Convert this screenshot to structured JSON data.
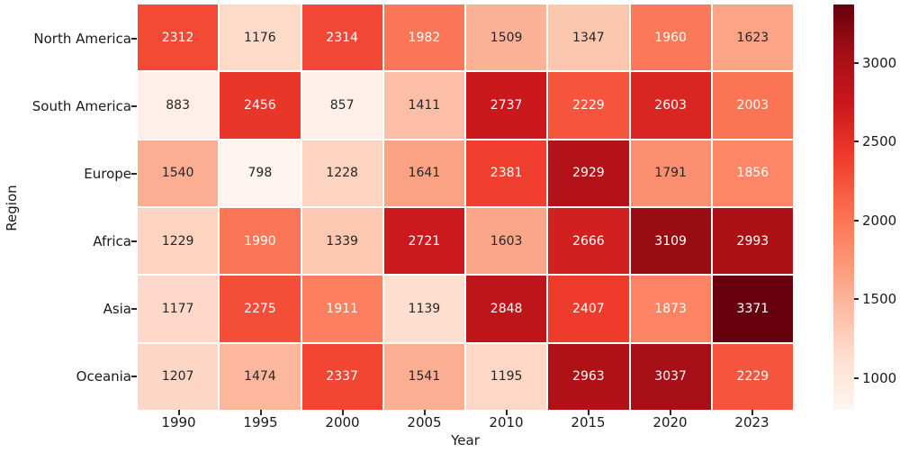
{
  "chart_data": {
    "type": "heatmap",
    "xlabel": "Year",
    "ylabel": "Region",
    "columns": [
      "1990",
      "1995",
      "2000",
      "2005",
      "2010",
      "2015",
      "2020",
      "2023"
    ],
    "rows": [
      "North America",
      "South America",
      "Europe",
      "Africa",
      "Asia",
      "Oceania"
    ],
    "values": [
      [
        2312,
        1176,
        2314,
        1982,
        1509,
        1347,
        1960,
        1623
      ],
      [
        883,
        2456,
        857,
        1411,
        2737,
        2229,
        2603,
        2003
      ],
      [
        1540,
        798,
        1228,
        1641,
        2381,
        2929,
        1791,
        1856
      ],
      [
        1229,
        1990,
        1339,
        2721,
        1603,
        2666,
        3109,
        2993
      ],
      [
        1177,
        2275,
        1911,
        1139,
        2848,
        2407,
        1873,
        3371
      ],
      [
        1207,
        1474,
        2337,
        1541,
        1195,
        2963,
        3037,
        2229
      ]
    ],
    "vmin": 798,
    "vmax": 3371,
    "colormap": {
      "name": "Reds",
      "stops": [
        "#fff5f0",
        "#fee0d2",
        "#fcbba1",
        "#fc9272",
        "#fb6a4a",
        "#ef3b2c",
        "#cb181d",
        "#a50f15",
        "#67000d"
      ]
    },
    "colorbar_ticks": [
      1000,
      1500,
      2000,
      2500,
      3000
    ],
    "legend_position": "right",
    "grid_line_color": "#ffffff",
    "annotation_colors": {
      "light": "#ffffff",
      "dark": "#262626"
    },
    "axis_text_color": "#1a1a1a"
  }
}
